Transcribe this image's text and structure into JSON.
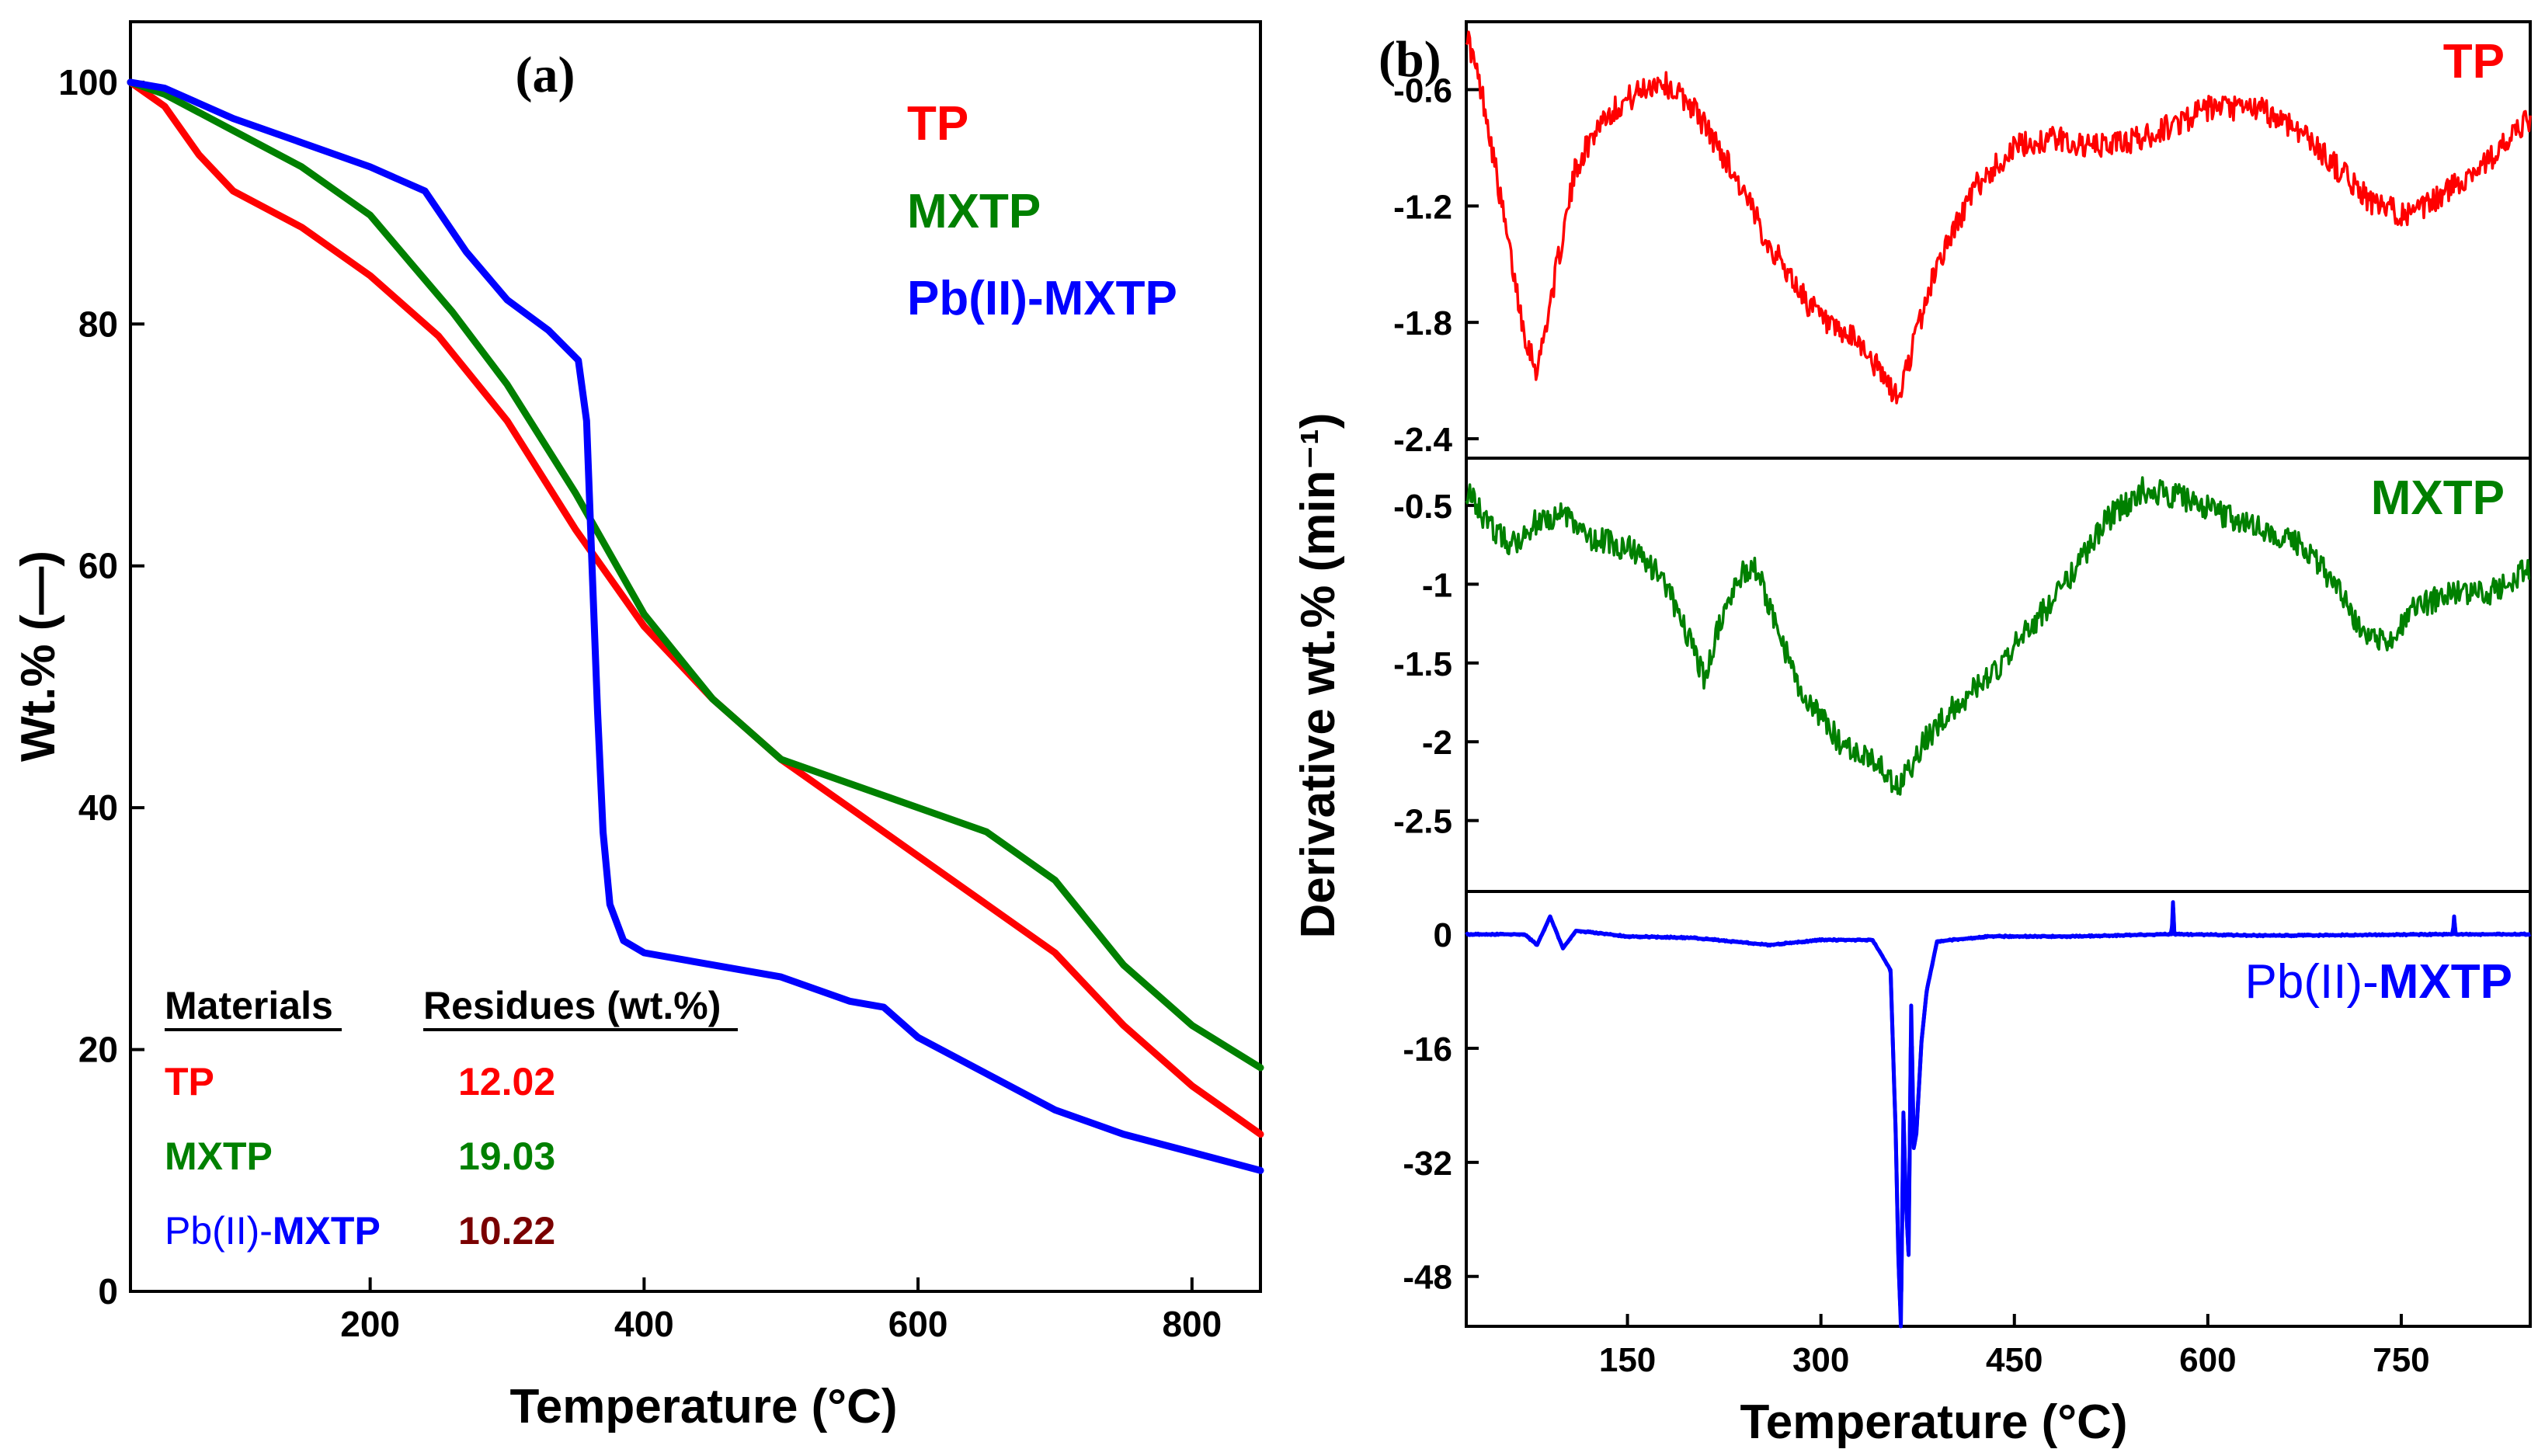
{
  "chart_data": [
    {
      "type": "line",
      "panel_label": "(a)",
      "xlabel": "Temperature (°C)",
      "ylabel": "Wt.% (—)",
      "xlim": [
        25,
        850
      ],
      "ylim": [
        0,
        105
      ],
      "xticks": [
        200,
        400,
        600,
        800
      ],
      "yticks": [
        0,
        20,
        40,
        60,
        80,
        100
      ],
      "legend": [
        "TP",
        "MXTP",
        "Pb(II)-MXTP"
      ],
      "legend_position": "top-right",
      "series": [
        {
          "name": "TP",
          "color": "#ff0000",
          "x": [
            25,
            50,
            75,
            100,
            150,
            200,
            250,
            300,
            350,
            400,
            450,
            500,
            550,
            600,
            650,
            700,
            750,
            800,
            850
          ],
          "y": [
            100,
            98,
            94,
            91,
            88,
            84,
            79,
            72,
            63,
            55,
            49,
            44,
            40,
            36,
            32,
            28,
            22,
            17,
            13
          ]
        },
        {
          "name": "MXTP",
          "color": "#008000",
          "x": [
            25,
            50,
            100,
            150,
            200,
            230,
            260,
            300,
            350,
            400,
            450,
            500,
            550,
            600,
            650,
            700,
            750,
            800,
            850
          ],
          "y": [
            100,
            99,
            96,
            93,
            89,
            85,
            81,
            75,
            66,
            56,
            49,
            44,
            42,
            40,
            38,
            34,
            27,
            22,
            18.5
          ]
        },
        {
          "name": "Pb(II)-MXTP",
          "color": "#0000ff",
          "x": [
            25,
            50,
            100,
            150,
            200,
            240,
            270,
            300,
            330,
            352,
            358,
            362,
            366,
            370,
            375,
            385,
            400,
            450,
            500,
            550,
            575,
            600,
            650,
            700,
            750,
            800,
            850
          ],
          "y": [
            100,
            99.5,
            97,
            95,
            93,
            91,
            86,
            82,
            79.5,
            77,
            72,
            60,
            48,
            38,
            32,
            29,
            28,
            27,
            26,
            24,
            23.5,
            21,
            18,
            15,
            13,
            11.5,
            10
          ]
        }
      ],
      "table": {
        "headers": [
          "Materials",
          "Residues (wt.%)"
        ],
        "rows": [
          {
            "material": "TP",
            "residue": "12.02"
          },
          {
            "material_prefix": "Pb(II)-",
            "material": "MXTP",
            "residue": "10.22"
          },
          {
            "material": "MXTP",
            "residue": "19.03"
          }
        ]
      }
    },
    {
      "type": "line",
      "panel_label": "(b)",
      "xlabel": "Temperature (°C)",
      "ylabel": "Derivative wt.% (min⁻¹)",
      "xlim": [
        25,
        850
      ],
      "xticks": [
        150,
        300,
        450,
        600,
        750
      ],
      "subplots": [
        {
          "name": "TP",
          "color": "#ff0000",
          "ylim": [
            -2.5,
            -0.25
          ],
          "yticks": [
            -0.6,
            -1.2,
            -1.8,
            -2.4
          ],
          "x": [
            25,
            40,
            55,
            70,
            80,
            90,
            110,
            130,
            150,
            175,
            200,
            230,
            260,
            290,
            310,
            330,
            350,
            360,
            370,
            390,
            420,
            450,
            480,
            510,
            550,
            600,
            640,
            670,
            700,
            730,
            760,
            790,
            820,
            850
          ],
          "y": [
            -0.3,
            -0.7,
            -1.3,
            -1.85,
            -2.05,
            -1.7,
            -1.0,
            -0.75,
            -0.65,
            -0.55,
            -0.68,
            -1.0,
            -1.4,
            -1.7,
            -1.85,
            -1.9,
            -2.1,
            -2.2,
            -1.95,
            -1.5,
            -1.1,
            -0.9,
            -0.85,
            -0.9,
            -0.85,
            -0.7,
            -0.7,
            -0.8,
            -1.0,
            -1.2,
            -1.25,
            -1.1,
            -0.95,
            -0.75
          ]
        },
        {
          "name": "MXTP",
          "prefix": "",
          "color": "#008000",
          "ylim": [
            -2.95,
            -0.2
          ],
          "yticks": [
            -0.5,
            -1.0,
            -1.5,
            -2.0,
            -2.5
          ],
          "x": [
            25,
            40,
            60,
            80,
            100,
            120,
            140,
            160,
            180,
            200,
            210,
            220,
            235,
            250,
            265,
            280,
            300,
            320,
            340,
            360,
            380,
            400,
            430,
            460,
            490,
            520,
            550,
            580,
            610,
            640,
            670,
            700,
            720,
            740,
            760,
            790,
            820,
            850
          ],
          "y": [
            -0.4,
            -0.6,
            -0.75,
            -0.6,
            -0.55,
            -0.7,
            -0.75,
            -0.8,
            -1.0,
            -1.4,
            -1.6,
            -1.3,
            -0.95,
            -0.9,
            -1.25,
            -1.6,
            -1.85,
            -2.05,
            -2.1,
            -2.3,
            -2.0,
            -1.8,
            -1.6,
            -1.3,
            -1.0,
            -0.6,
            -0.4,
            -0.45,
            -0.55,
            -0.65,
            -0.75,
            -1.0,
            -1.3,
            -1.35,
            -1.15,
            -1.05,
            -1.05,
            -0.9
          ]
        },
        {
          "name": "MXTP",
          "prefix": "Pb(II)-",
          "color": "#0000ff",
          "ylim": [
            -55,
            6
          ],
          "yticks": [
            0,
            -16,
            -32,
            -48
          ],
          "x": [
            25,
            70,
            80,
            90,
            100,
            110,
            150,
            200,
            260,
            300,
            340,
            354,
            358,
            360,
            362,
            364,
            366,
            368,
            370,
            372,
            374,
            378,
            382,
            390,
            430,
            500,
            572,
            573,
            574,
            650,
            790,
            791,
            792,
            850
          ],
          "y": [
            0,
            0,
            -1.5,
            2.5,
            -2,
            0.5,
            -0.3,
            -0.5,
            -1.5,
            -0.8,
            -0.8,
            -5,
            -28,
            -45,
            -55,
            -25,
            -38,
            -45,
            -10,
            -30,
            -28,
            -15,
            -8,
            -1,
            -0.3,
            -0.3,
            0,
            4.5,
            0,
            -0.2,
            0,
            2.5,
            0,
            0
          ]
        }
      ]
    }
  ]
}
